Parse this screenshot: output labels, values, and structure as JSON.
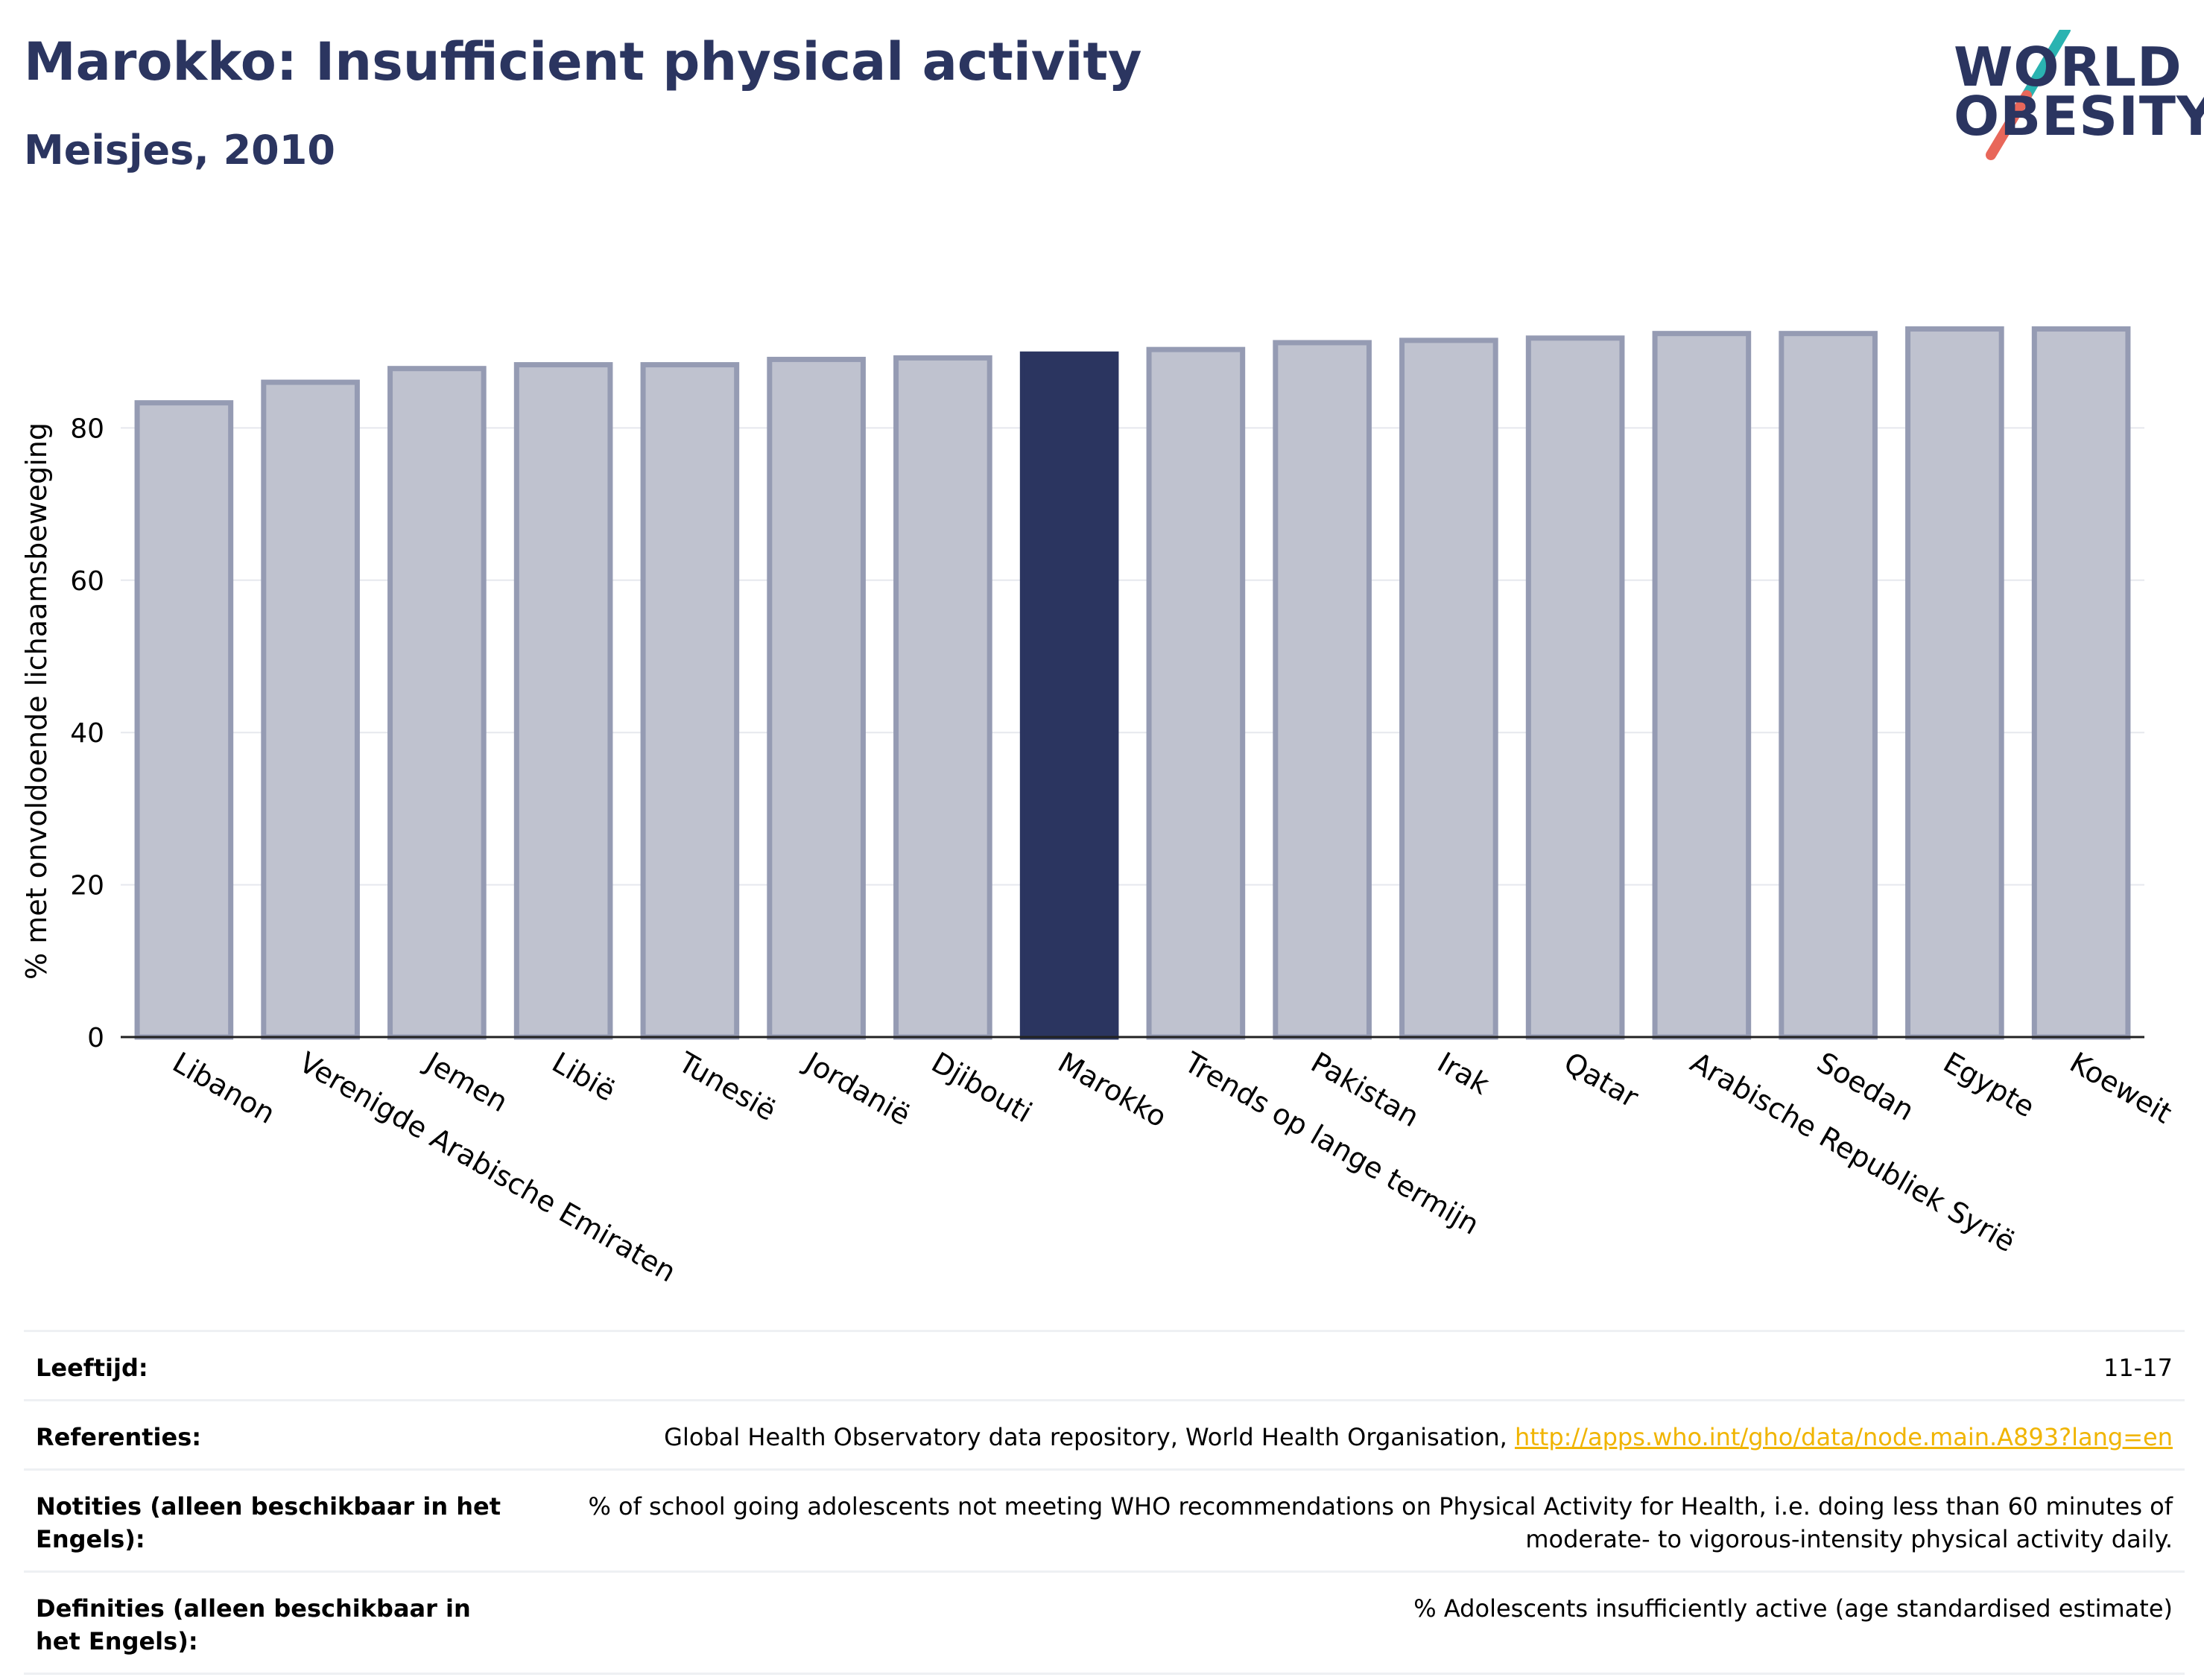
{
  "header": {
    "title": "Marokko: Insufficient physical activity",
    "subtitle": "Meisjes, 2010"
  },
  "logo": {
    "line1": "WORLD",
    "line2": "OBESITY",
    "colors": {
      "text": "#2b3560",
      "slash_top": "#2ab3b1",
      "slash_bottom": "#e8675a"
    }
  },
  "chart_data": {
    "type": "bar",
    "categories": [
      "Libanon",
      "Verenigde Arabische Emiraten",
      "Jemen",
      "Libië",
      "Tunesië",
      "Jordanië",
      "Djibouti",
      "Marokko",
      "Trends op lange termijn",
      "Pakistan",
      "Irak",
      "Qatar",
      "Arabische Republiek Syrië",
      "Soedan",
      "Egypte",
      "Koeweit"
    ],
    "values": [
      83.3,
      86.0,
      87.8,
      88.3,
      88.3,
      89.0,
      89.2,
      89.7,
      90.3,
      91.2,
      91.5,
      91.8,
      92.4,
      92.4,
      93.0,
      93.0
    ],
    "highlight": "Marokko",
    "ylabel": "% met onvoldoende lichaamsbeweging",
    "xlabel": "",
    "ylim": [
      0,
      100
    ],
    "yticks": [
      0,
      20,
      40,
      60,
      80
    ],
    "grid": true,
    "colors": {
      "bar": "#bfc2cf",
      "bar_border": "#959bb3",
      "highlight": "#2b3560"
    }
  },
  "info": {
    "rows": [
      {
        "label": "Leeftijd:",
        "value": "11-17"
      },
      {
        "label": "Referenties:",
        "value": "Global Health Observatory data repository, World Health Organisation, ",
        "link": "http://apps.who.int/gho/data/node.main.A893?lang=en"
      },
      {
        "label": "Notities (alleen beschikbaar in het Engels):",
        "value": "% of school going adolescents not meeting WHO recommendations on Physical Activity for Health, i.e. doing less than 60 minutes of moderate- to vigorous-intensity physical activity daily."
      },
      {
        "label": "Definities (alleen beschikbaar in het Engels):",
        "value": "% Adolescents insufficiently active (age standardised estimate)"
      }
    ]
  }
}
